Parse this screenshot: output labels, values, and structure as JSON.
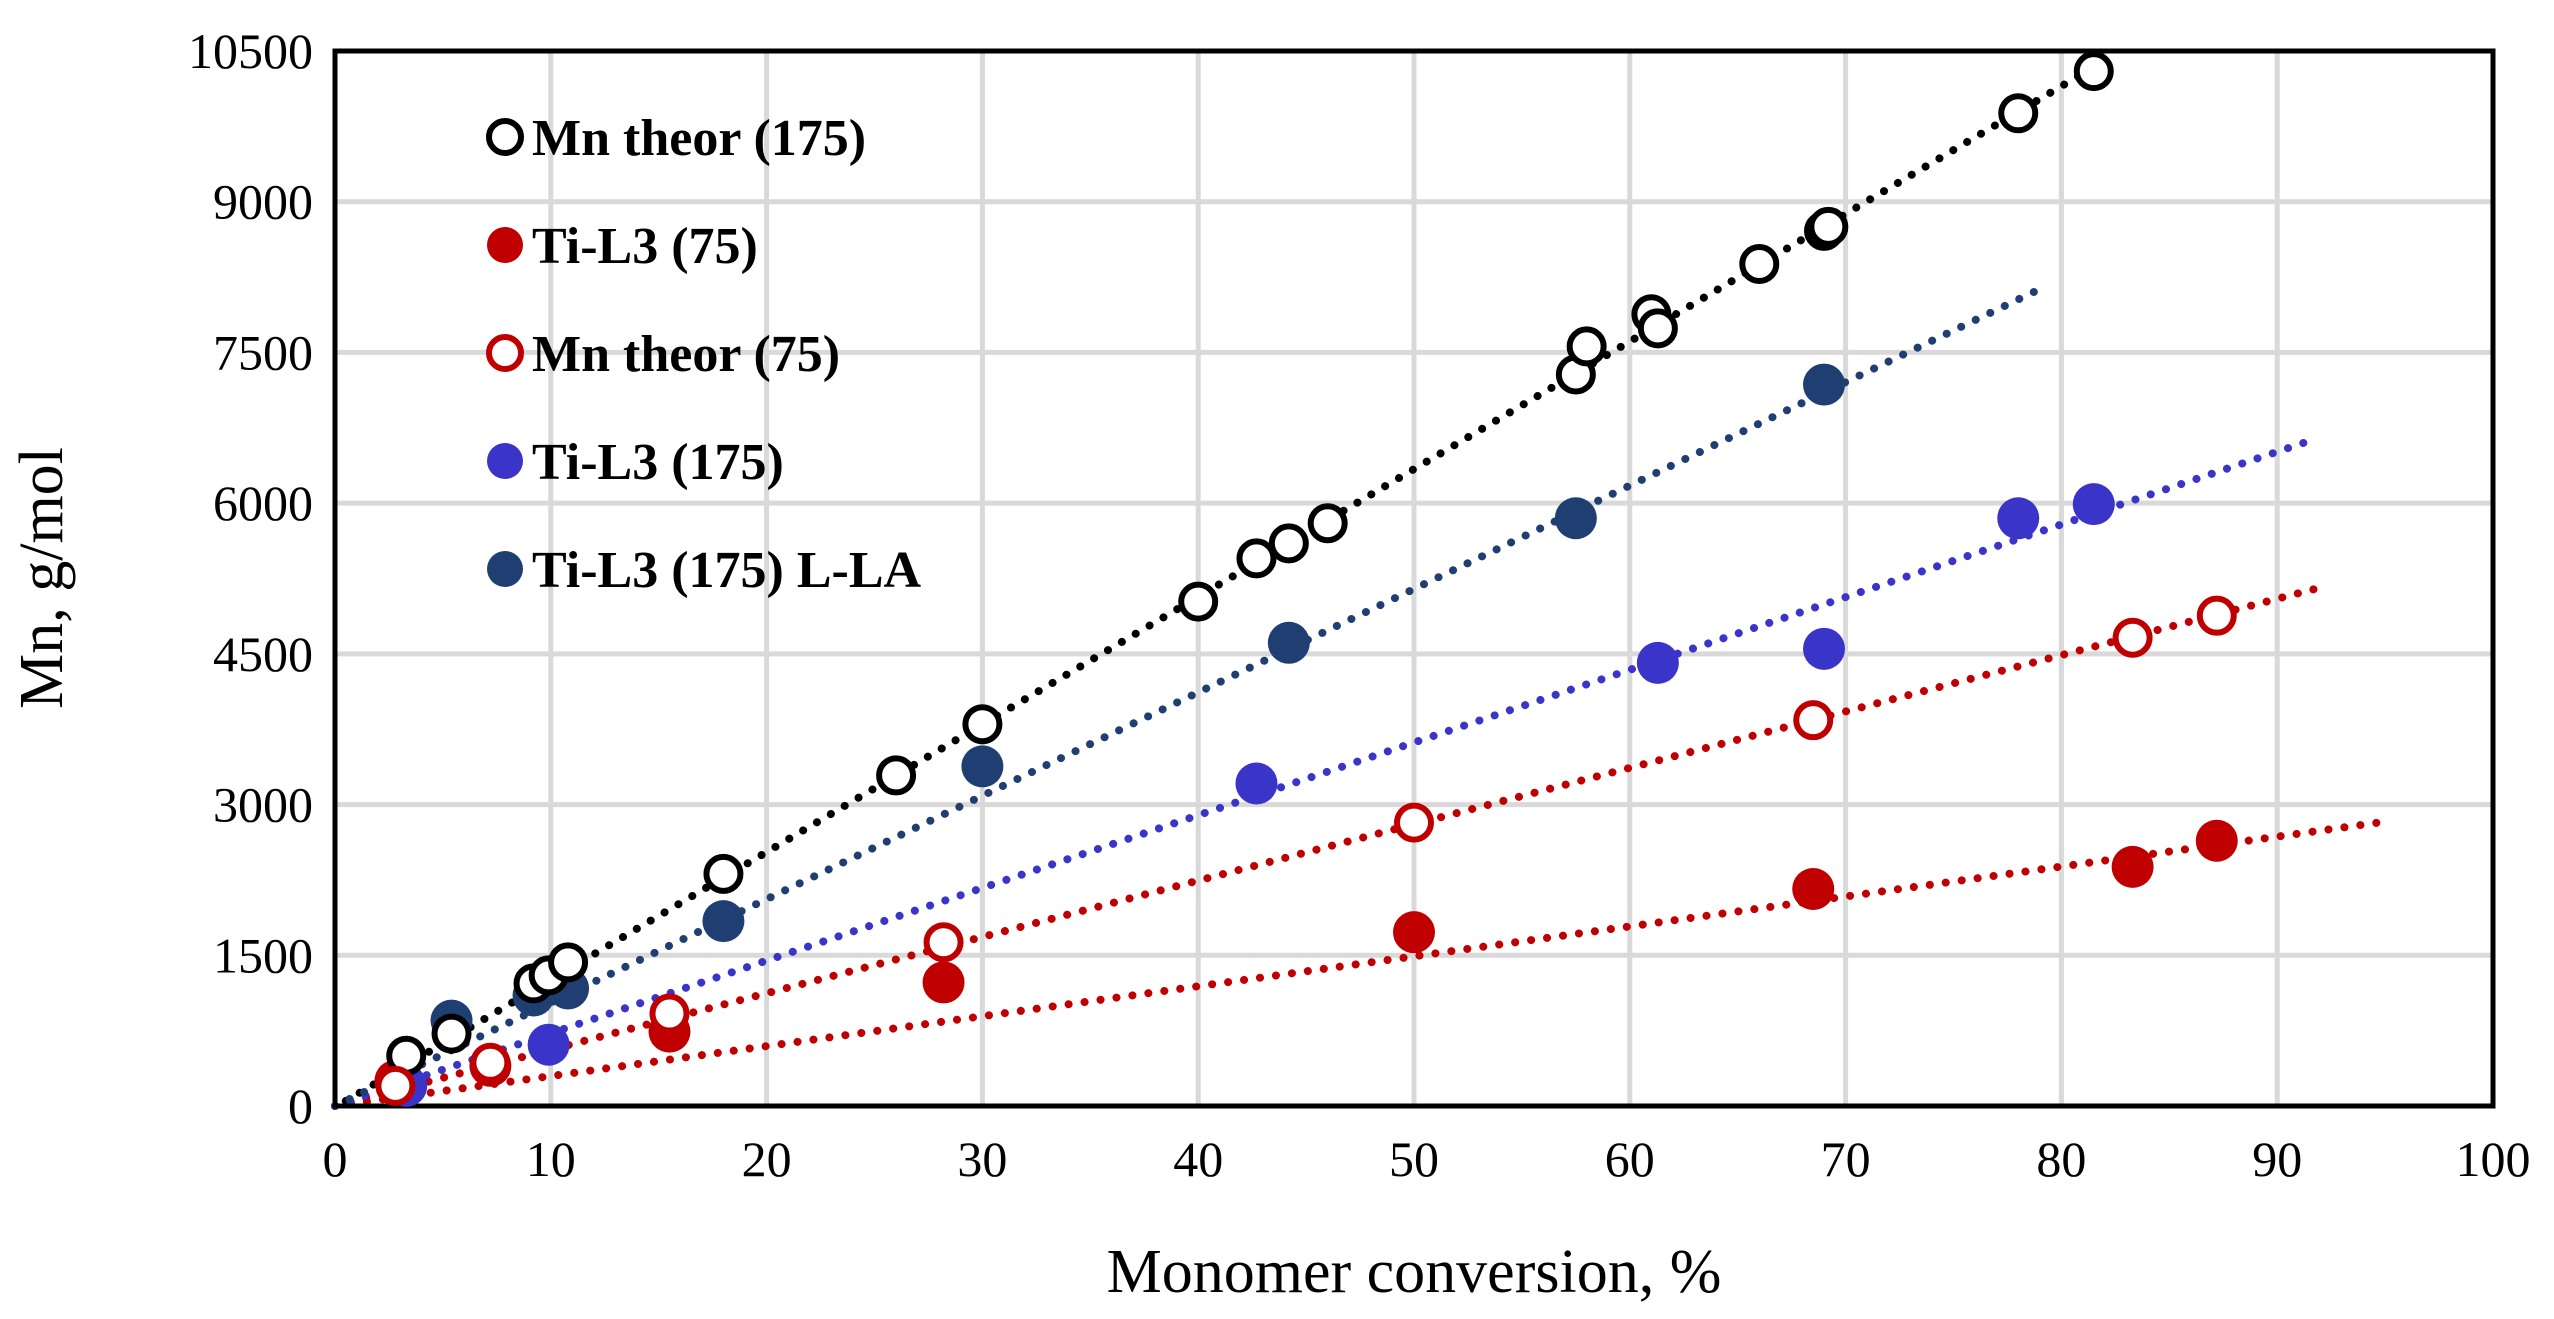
{
  "chart_data": {
    "type": "scatter",
    "title": "",
    "xlabel": "Monomer conversion, %",
    "ylabel": "Mn, g/mol",
    "xlim": [
      0,
      100
    ],
    "ylim": [
      0,
      10500
    ],
    "x_ticks": [
      "0",
      "10",
      "20",
      "30",
      "40",
      "50",
      "60",
      "70",
      "80",
      "90",
      "100"
    ],
    "y_ticks": [
      "0",
      "1500",
      "3000",
      "4500",
      "6000",
      "7500",
      "9000",
      "10500"
    ],
    "grid": true,
    "legend_position": "top-left",
    "series": [
      {
        "name": "Mn theor (175)",
        "marker": "open-circle",
        "color": "#000000",
        "x": [
          3.3,
          5.4,
          9.2,
          9.9,
          10.8,
          18.0,
          26.0,
          30.0,
          40.0,
          42.7,
          44.2,
          46.0,
          57.5,
          58.0,
          61.0,
          61.3,
          66.0,
          69.0,
          69.2,
          78.0,
          81.5
        ],
        "y": [
          500,
          720,
          1220,
          1300,
          1430,
          2310,
          3290,
          3800,
          5020,
          5450,
          5600,
          5800,
          7280,
          7560,
          7880,
          7740,
          8380,
          8710,
          8750,
          9880,
          10300
        ],
        "trendline": {
          "x": [
            0.5,
            81.5
          ],
          "y": [
            50,
            10340
          ]
        }
      },
      {
        "name": "Ti-L3 (75)",
        "marker": "filled-circle",
        "color": "#c00000",
        "x": [
          2.8,
          7.2,
          15.5,
          28.2,
          50.0,
          68.5,
          83.3,
          87.2
        ],
        "y": [
          250,
          400,
          740,
          1230,
          1730,
          2160,
          2380,
          2640
        ],
        "trendline": {
          "x": [
            0,
            95
          ],
          "y": [
            0,
            2830
          ]
        }
      },
      {
        "name": "Mn theor (75)",
        "marker": "open-circle",
        "color": "#c00000",
        "x": [
          2.8,
          7.2,
          15.5,
          28.2,
          50.0,
          68.5,
          83.3,
          87.2
        ],
        "y": [
          200,
          430,
          920,
          1630,
          2820,
          3840,
          4660,
          4880
        ],
        "trendline": {
          "x": [
            0,
            92
          ],
          "y": [
            0,
            5160
          ]
        }
      },
      {
        "name": "Ti-L3 (175)",
        "marker": "filled-circle",
        "color": "#3a34c9",
        "x": [
          3.3,
          9.9,
          42.7,
          61.3,
          69.0,
          78.0,
          81.5
        ],
        "y": [
          200,
          610,
          3210,
          4410,
          4550,
          5850,
          5990
        ],
        "trendline": {
          "x": [
            0,
            91.5
          ],
          "y": [
            0,
            6620
          ]
        }
      },
      {
        "name": "Ti-L3 (175) L-LA",
        "marker": "filled-circle",
        "color": "#1f3f73",
        "x": [
          5.4,
          9.2,
          10.8,
          18.0,
          30.0,
          44.2,
          57.5,
          69.0
        ],
        "y": [
          850,
          1100,
          1170,
          1840,
          3380,
          4610,
          5850,
          7180
        ],
        "trendline": {
          "x": [
            0,
            79
          ],
          "y": [
            0,
            8130
          ]
        }
      }
    ]
  }
}
